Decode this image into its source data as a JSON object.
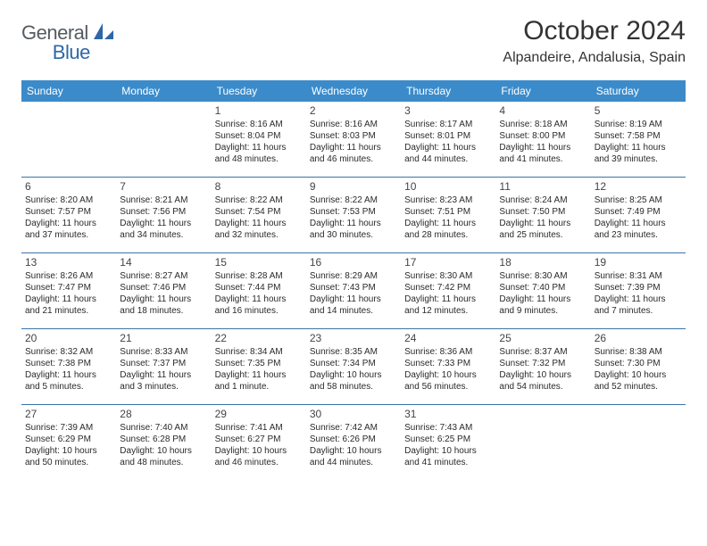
{
  "brand": {
    "text_general": "General",
    "text_blue": "Blue",
    "icon_color": "#2e67a8"
  },
  "title": "October 2024",
  "location": "Alpandeire, Andalusia, Spain",
  "colors": {
    "header_bg": "#3b8bca",
    "header_text": "#ffffff",
    "divider": "#3b74a7",
    "body_text": "#333333"
  },
  "day_names": [
    "Sunday",
    "Monday",
    "Tuesday",
    "Wednesday",
    "Thursday",
    "Friday",
    "Saturday"
  ],
  "calendar": {
    "type": "table",
    "columns": 7,
    "rows": 5,
    "weeks": [
      [
        null,
        null,
        {
          "n": "1",
          "sr": "Sunrise: 8:16 AM",
          "ss": "Sunset: 8:04 PM",
          "d1": "Daylight: 11 hours",
          "d2": "and 48 minutes."
        },
        {
          "n": "2",
          "sr": "Sunrise: 8:16 AM",
          "ss": "Sunset: 8:03 PM",
          "d1": "Daylight: 11 hours",
          "d2": "and 46 minutes."
        },
        {
          "n": "3",
          "sr": "Sunrise: 8:17 AM",
          "ss": "Sunset: 8:01 PM",
          "d1": "Daylight: 11 hours",
          "d2": "and 44 minutes."
        },
        {
          "n": "4",
          "sr": "Sunrise: 8:18 AM",
          "ss": "Sunset: 8:00 PM",
          "d1": "Daylight: 11 hours",
          "d2": "and 41 minutes."
        },
        {
          "n": "5",
          "sr": "Sunrise: 8:19 AM",
          "ss": "Sunset: 7:58 PM",
          "d1": "Daylight: 11 hours",
          "d2": "and 39 minutes."
        }
      ],
      [
        {
          "n": "6",
          "sr": "Sunrise: 8:20 AM",
          "ss": "Sunset: 7:57 PM",
          "d1": "Daylight: 11 hours",
          "d2": "and 37 minutes."
        },
        {
          "n": "7",
          "sr": "Sunrise: 8:21 AM",
          "ss": "Sunset: 7:56 PM",
          "d1": "Daylight: 11 hours",
          "d2": "and 34 minutes."
        },
        {
          "n": "8",
          "sr": "Sunrise: 8:22 AM",
          "ss": "Sunset: 7:54 PM",
          "d1": "Daylight: 11 hours",
          "d2": "and 32 minutes."
        },
        {
          "n": "9",
          "sr": "Sunrise: 8:22 AM",
          "ss": "Sunset: 7:53 PM",
          "d1": "Daylight: 11 hours",
          "d2": "and 30 minutes."
        },
        {
          "n": "10",
          "sr": "Sunrise: 8:23 AM",
          "ss": "Sunset: 7:51 PM",
          "d1": "Daylight: 11 hours",
          "d2": "and 28 minutes."
        },
        {
          "n": "11",
          "sr": "Sunrise: 8:24 AM",
          "ss": "Sunset: 7:50 PM",
          "d1": "Daylight: 11 hours",
          "d2": "and 25 minutes."
        },
        {
          "n": "12",
          "sr": "Sunrise: 8:25 AM",
          "ss": "Sunset: 7:49 PM",
          "d1": "Daylight: 11 hours",
          "d2": "and 23 minutes."
        }
      ],
      [
        {
          "n": "13",
          "sr": "Sunrise: 8:26 AM",
          "ss": "Sunset: 7:47 PM",
          "d1": "Daylight: 11 hours",
          "d2": "and 21 minutes."
        },
        {
          "n": "14",
          "sr": "Sunrise: 8:27 AM",
          "ss": "Sunset: 7:46 PM",
          "d1": "Daylight: 11 hours",
          "d2": "and 18 minutes."
        },
        {
          "n": "15",
          "sr": "Sunrise: 8:28 AM",
          "ss": "Sunset: 7:44 PM",
          "d1": "Daylight: 11 hours",
          "d2": "and 16 minutes."
        },
        {
          "n": "16",
          "sr": "Sunrise: 8:29 AM",
          "ss": "Sunset: 7:43 PM",
          "d1": "Daylight: 11 hours",
          "d2": "and 14 minutes."
        },
        {
          "n": "17",
          "sr": "Sunrise: 8:30 AM",
          "ss": "Sunset: 7:42 PM",
          "d1": "Daylight: 11 hours",
          "d2": "and 12 minutes."
        },
        {
          "n": "18",
          "sr": "Sunrise: 8:30 AM",
          "ss": "Sunset: 7:40 PM",
          "d1": "Daylight: 11 hours",
          "d2": "and 9 minutes."
        },
        {
          "n": "19",
          "sr": "Sunrise: 8:31 AM",
          "ss": "Sunset: 7:39 PM",
          "d1": "Daylight: 11 hours",
          "d2": "and 7 minutes."
        }
      ],
      [
        {
          "n": "20",
          "sr": "Sunrise: 8:32 AM",
          "ss": "Sunset: 7:38 PM",
          "d1": "Daylight: 11 hours",
          "d2": "and 5 minutes."
        },
        {
          "n": "21",
          "sr": "Sunrise: 8:33 AM",
          "ss": "Sunset: 7:37 PM",
          "d1": "Daylight: 11 hours",
          "d2": "and 3 minutes."
        },
        {
          "n": "22",
          "sr": "Sunrise: 8:34 AM",
          "ss": "Sunset: 7:35 PM",
          "d1": "Daylight: 11 hours",
          "d2": "and 1 minute."
        },
        {
          "n": "23",
          "sr": "Sunrise: 8:35 AM",
          "ss": "Sunset: 7:34 PM",
          "d1": "Daylight: 10 hours",
          "d2": "and 58 minutes."
        },
        {
          "n": "24",
          "sr": "Sunrise: 8:36 AM",
          "ss": "Sunset: 7:33 PM",
          "d1": "Daylight: 10 hours",
          "d2": "and 56 minutes."
        },
        {
          "n": "25",
          "sr": "Sunrise: 8:37 AM",
          "ss": "Sunset: 7:32 PM",
          "d1": "Daylight: 10 hours",
          "d2": "and 54 minutes."
        },
        {
          "n": "26",
          "sr": "Sunrise: 8:38 AM",
          "ss": "Sunset: 7:30 PM",
          "d1": "Daylight: 10 hours",
          "d2": "and 52 minutes."
        }
      ],
      [
        {
          "n": "27",
          "sr": "Sunrise: 7:39 AM",
          "ss": "Sunset: 6:29 PM",
          "d1": "Daylight: 10 hours",
          "d2": "and 50 minutes."
        },
        {
          "n": "28",
          "sr": "Sunrise: 7:40 AM",
          "ss": "Sunset: 6:28 PM",
          "d1": "Daylight: 10 hours",
          "d2": "and 48 minutes."
        },
        {
          "n": "29",
          "sr": "Sunrise: 7:41 AM",
          "ss": "Sunset: 6:27 PM",
          "d1": "Daylight: 10 hours",
          "d2": "and 46 minutes."
        },
        {
          "n": "30",
          "sr": "Sunrise: 7:42 AM",
          "ss": "Sunset: 6:26 PM",
          "d1": "Daylight: 10 hours",
          "d2": "and 44 minutes."
        },
        {
          "n": "31",
          "sr": "Sunrise: 7:43 AM",
          "ss": "Sunset: 6:25 PM",
          "d1": "Daylight: 10 hours",
          "d2": "and 41 minutes."
        },
        null,
        null
      ]
    ]
  }
}
